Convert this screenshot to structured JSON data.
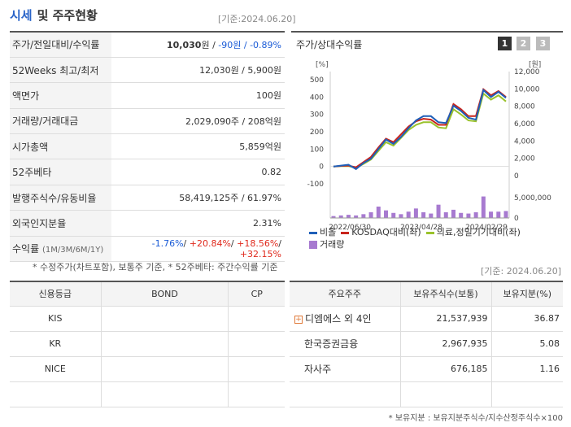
{
  "header": {
    "title": "시세",
    "title2": "및 주주현황",
    "asof": "[기준:2024.06.20]"
  },
  "price_table": [
    {
      "label": "주가/전일대비/수익률",
      "parts": [
        [
          "10,030",
          "b"
        ],
        [
          "원 / ",
          ""
        ],
        [
          "-90",
          "neg"
        ],
        [
          "원 / ",
          "neg"
        ],
        [
          "-0.89%",
          "neg"
        ]
      ]
    },
    {
      "label": "52Weeks 최고/최저",
      "value": "12,030원 / 5,900원"
    },
    {
      "label": "액면가",
      "value": "100원"
    },
    {
      "label": "거래량/거래대금",
      "value": "2,029,090주 / 208억원"
    },
    {
      "label": "시가총액",
      "value": "5,859억원"
    },
    {
      "label": "52주베타",
      "value": "0.82"
    },
    {
      "label": "발행주식수/유동비율",
      "value": "58,419,125주 / 61.97%"
    },
    {
      "label": "외국인지분율",
      "value": "2.31%"
    },
    {
      "label": "수익률",
      "label_small": "(1M/3M/6M/1Y)",
      "parts": [
        [
          "-1.76%",
          "neg"
        ],
        [
          "/ ",
          ""
        ],
        [
          "+20.84%",
          "pos"
        ],
        [
          "/ ",
          ""
        ],
        [
          "+18.56%",
          "pos"
        ],
        [
          "/ ",
          ""
        ],
        [
          "+32.15%",
          "pos"
        ]
      ]
    }
  ],
  "note1": "* 수정주가(차트포함), 보통주 기준, * 52주베타: 주간수익률 기준",
  "chart": {
    "title": "주가/상대수익률",
    "pages": [
      "1",
      "2",
      "3"
    ],
    "left_unit": "[%]",
    "right_unit": "[원]",
    "legend": [
      {
        "label": "비올",
        "color": "#1f5fb8"
      },
      {
        "label": "KOSDAQ대비(좌)",
        "color": "#c8241c"
      },
      {
        "label": "의료,정밀기기대비(좌)",
        "color": "#9ac22c"
      },
      {
        "label": "거래량",
        "color": "#a77ad0",
        "square": true
      }
    ]
  },
  "chart_data": {
    "type": "line",
    "title": "주가/상대수익률",
    "x_ticks": [
      "2022/06/30",
      "2023/04/28",
      "2024/02/29"
    ],
    "left_axis": {
      "unit": "%",
      "ticks": [
        -100,
        0,
        100,
        200,
        300,
        400,
        500
      ],
      "ylim": [
        -100,
        500
      ]
    },
    "right_axis": {
      "unit": "원",
      "ticks": [
        0,
        2000,
        4000,
        6000,
        8000,
        10000,
        12000
      ],
      "ylim": [
        0,
        12000
      ]
    },
    "volume_axis": {
      "ticks": [
        0,
        5000000
      ]
    },
    "series": [
      {
        "name": "비올",
        "color": "#1f5fb8",
        "values": [
          0,
          5,
          10,
          -15,
          20,
          45,
          100,
          155,
          130,
          170,
          220,
          265,
          290,
          290,
          255,
          250,
          350,
          320,
          280,
          270,
          440,
          400,
          430,
          395
        ]
      },
      {
        "name": "KOSDAQ대비(좌)",
        "color": "#c8241c",
        "values": [
          0,
          3,
          5,
          -5,
          25,
          55,
          110,
          160,
          140,
          185,
          230,
          260,
          275,
          270,
          240,
          240,
          360,
          330,
          290,
          290,
          445,
          410,
          435,
          400
        ]
      },
      {
        "name": "의료,정밀기기대비(좌)",
        "color": "#9ac22c",
        "values": [
          0,
          2,
          2,
          -8,
          15,
          40,
          90,
          140,
          120,
          165,
          210,
          240,
          255,
          255,
          225,
          220,
          330,
          300,
          265,
          260,
          420,
          385,
          410,
          375
        ]
      }
    ],
    "volume": {
      "name": "거래량",
      "color": "#a77ad0",
      "values": [
        0.3,
        0.4,
        0.5,
        0.4,
        0.6,
        0.9,
        1.8,
        1.2,
        0.8,
        0.6,
        1.0,
        1.5,
        0.9,
        0.7,
        2.1,
        0.9,
        1.3,
        0.8,
        0.7,
        0.9,
        3.4,
        1.0,
        1.0,
        1.1
      ]
    }
  },
  "asof2": "[기준: 2024.06.20]",
  "credit": {
    "headers": [
      "신용등급",
      "BOND",
      "CP"
    ],
    "rows": [
      [
        "KIS",
        "",
        ""
      ],
      [
        "KR",
        "",
        ""
      ],
      [
        "NICE",
        "",
        ""
      ],
      [
        "",
        "",
        ""
      ]
    ]
  },
  "shareholders": {
    "headers": [
      "주요주주",
      "보유주식수(보통)",
      "보유지분(%)"
    ],
    "rows": [
      {
        "name": "디엠에스 외 4인",
        "shares": "21,537,939",
        "pct": "36.87",
        "expand": "+"
      },
      {
        "name": "한국증권금융",
        "shares": "2,967,935",
        "pct": "5.08"
      },
      {
        "name": "자사주",
        "shares": "676,185",
        "pct": "1.16"
      },
      {
        "name": "",
        "shares": "",
        "pct": ""
      }
    ]
  },
  "note2": "* 보유지분 : 보유지분주식수/지수산정주식수×100"
}
